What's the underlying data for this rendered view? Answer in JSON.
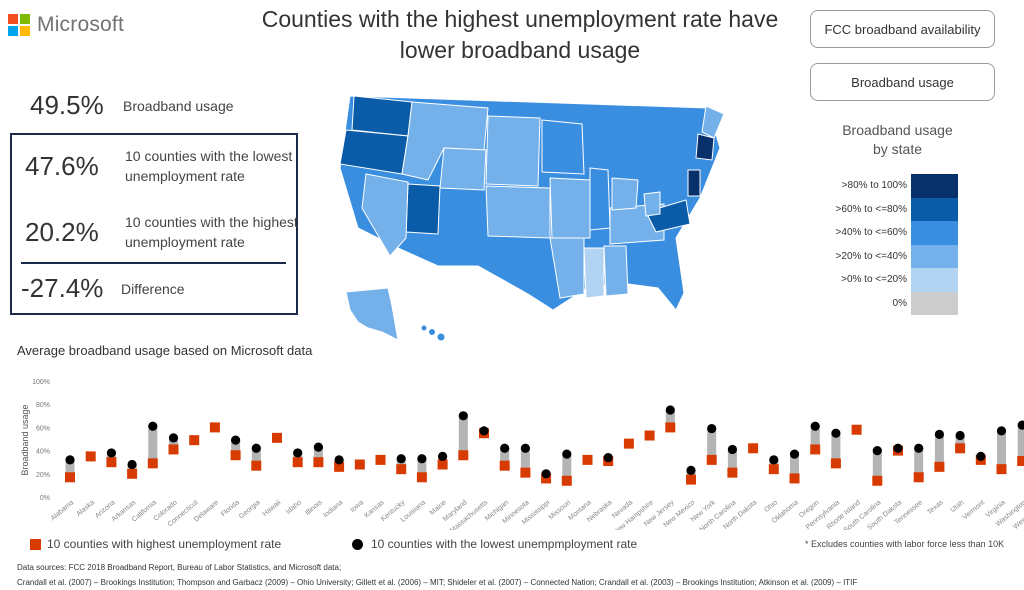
{
  "brand": {
    "name": "Microsoft",
    "colors": [
      "#f25022",
      "#7fba00",
      "#00a4ef",
      "#ffb900"
    ]
  },
  "title_line1": "Counties with the highest unemployment rate have",
  "title_line2": "lower broadband usage",
  "buttons": {
    "fcc": "FCC broadband availability",
    "usage": "Broadband usage"
  },
  "stats": {
    "overall": {
      "value": "49.5%",
      "label": "Broadband usage"
    },
    "lowest": {
      "value": "47.6%",
      "label1": "10 counties with the lowest",
      "label2": "unemployment rate"
    },
    "highest": {
      "value": "20.2%",
      "label1": "10 counties with the highest",
      "label2": "unemployment rate"
    },
    "difference": {
      "value": "-27.4%",
      "label": "Difference"
    }
  },
  "legend": {
    "title1": "Broadband usage",
    "title2": "by state",
    "items": [
      {
        "label": ">80% to 100%",
        "color": "#08306b"
      },
      {
        "label": ">60% to <=80%",
        "color": "#0b5ca8"
      },
      {
        "label": ">40% to <=60%",
        "color": "#3a8ee0"
      },
      {
        "label": ">20% to <=40%",
        "color": "#74b0ea"
      },
      {
        "label": ">0% to <=20%",
        "color": "#b3d3f3"
      },
      {
        "label": "0%",
        "color": "#cccccc"
      }
    ]
  },
  "chart_title": "Average broadband usage based on Microsoft data",
  "chart_data": {
    "type": "scatter",
    "ylabel": "Broadband usage",
    "ylim": [
      0,
      100
    ],
    "yticks": [
      "0%",
      "20%",
      "40%",
      "60%",
      "80%",
      "100%"
    ],
    "categories": [
      "Alabama",
      "Alaska",
      "Arizona",
      "Arkansas",
      "California",
      "Colorado",
      "Connecticut",
      "Delaware",
      "Florida",
      "Georgia",
      "Hawaii",
      "Idaho",
      "Illinois",
      "Indiana",
      "Iowa",
      "Kansas",
      "Kentucky",
      "Louisiana",
      "Maine",
      "Maryland",
      "Massachusetts",
      "Michigan",
      "Minnesota",
      "Mississippi",
      "Missouri",
      "Montana",
      "Nebraska",
      "Nevada",
      "New Hampshire",
      "New Jersey",
      "New Mexico",
      "New York",
      "North Carolina",
      "North Dakota",
      "Ohio",
      "Oklahoma",
      "Oregon",
      "Pennsylvania",
      "Rhode Island",
      "South Carolina",
      "South Dakota",
      "Tennessee",
      "Texas",
      "Utah",
      "Vermont",
      "Virginia",
      "Washington",
      "West Virginia",
      "Wisconsin",
      "Wyoming"
    ],
    "series": [
      {
        "name": "10 counties with highest unemployment rate",
        "color": "#d83b01",
        "marker": "square",
        "values": [
          17,
          35,
          30,
          20,
          29,
          41,
          49,
          60,
          36,
          27,
          51,
          30,
          30,
          26,
          28,
          32,
          24,
          17,
          28,
          36,
          55,
          27,
          21,
          16,
          14,
          32,
          31,
          46,
          53,
          60,
          15,
          32,
          21,
          42,
          24,
          16,
          41,
          29,
          58,
          14,
          40,
          17,
          26,
          42,
          32,
          24,
          31,
          21,
          31,
          34
        ]
      },
      {
        "name": "10 counties with the lowest unempmployment rate",
        "color": "#000000",
        "marker": "circle",
        "values": [
          32,
          null,
          38,
          28,
          61,
          51,
          null,
          null,
          49,
          42,
          null,
          38,
          43,
          32,
          null,
          null,
          33,
          33,
          35,
          70,
          57,
          42,
          42,
          20,
          37,
          null,
          34,
          null,
          null,
          75,
          23,
          59,
          41,
          null,
          32,
          37,
          61,
          55,
          null,
          40,
          42,
          42,
          54,
          53,
          35,
          57,
          62,
          33,
          40,
          null
        ]
      }
    ]
  },
  "legend_keys": {
    "highest": "10 counties with highest unemployment rate",
    "lowest": "10 counties with the lowest unempmployment rate",
    "note": "* Excludes counties with labor force less than 10K"
  },
  "footer": {
    "line1": "Data sources:  FCC 2018 Broadband Report, Bureau of Labor Statistics, and Microsoft data;",
    "line2": "Crandall et al. (2007) – Brookings Institution; Thompson and Garbacz (2009) – Ohio University; Gillett et al. (2006) – MIT; Shideler et al. (2007) – Connected Nation; Crandall et al. (2003) – Brookings Institution; Atkinson et al. (2009) – ITIF"
  }
}
